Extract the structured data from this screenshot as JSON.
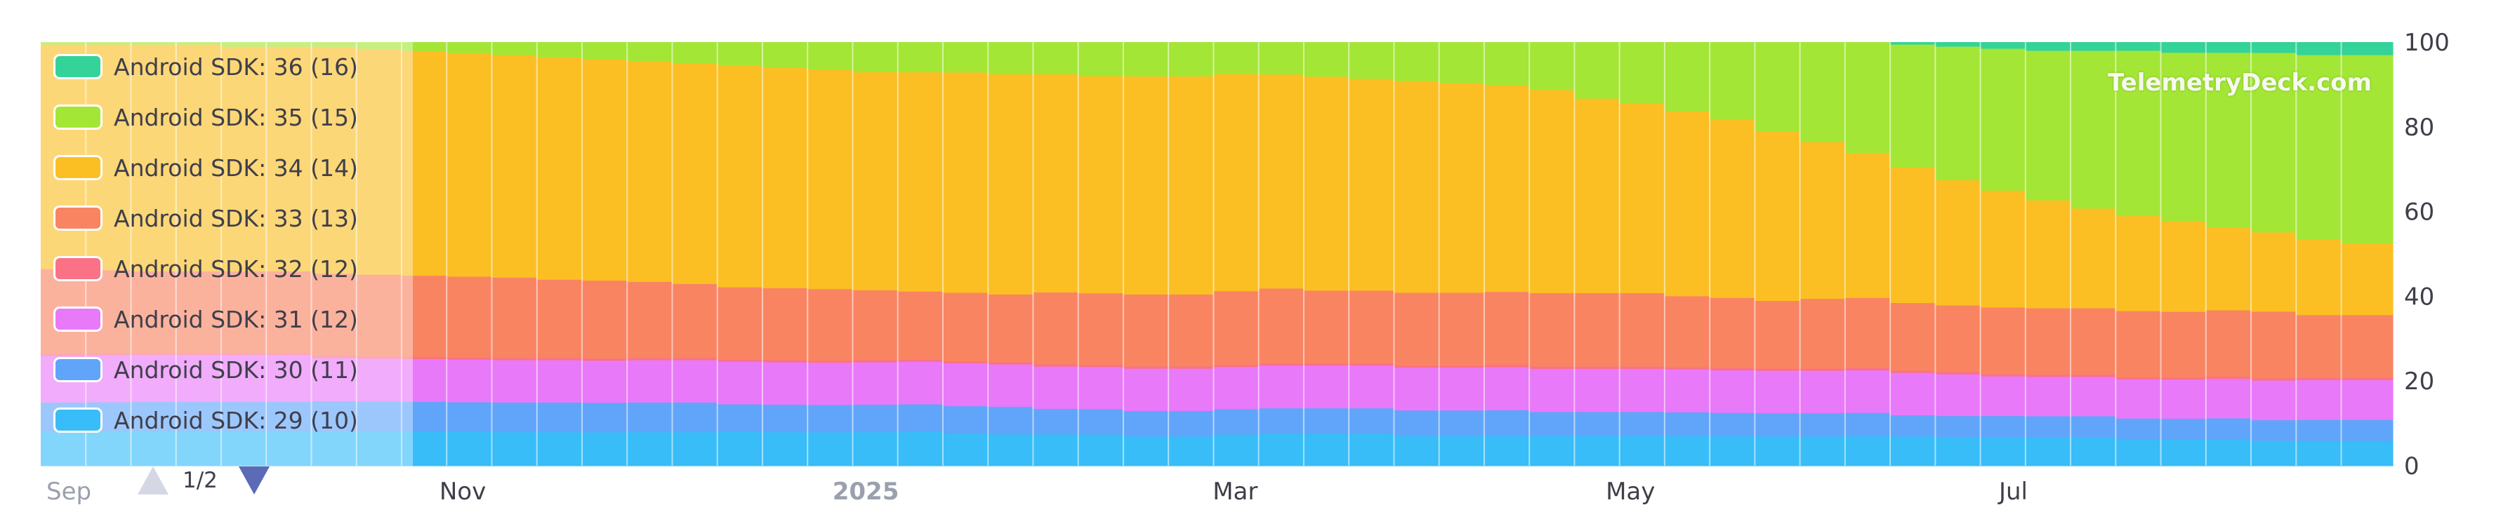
{
  "chart_data": {
    "type": "area",
    "stacked": true,
    "normalized": true,
    "x_axis": {
      "tick_labels": [
        {
          "label": "Sep",
          "at": "2024-09-01",
          "style": "muted"
        },
        {
          "label": "Nov",
          "at": "2024-11-01",
          "style": "normal"
        },
        {
          "label": "2025",
          "at": "2025-01-01",
          "style": "bold"
        },
        {
          "label": "Mar",
          "at": "2025-03-01",
          "style": "normal"
        },
        {
          "label": "May",
          "at": "2025-05-01",
          "style": "normal"
        },
        {
          "label": "Jul",
          "at": "2025-07-01",
          "style": "normal"
        }
      ],
      "range": [
        "2024-09-01",
        "2025-09-01"
      ]
    },
    "y_axis": {
      "ticks": [
        0,
        20,
        40,
        60,
        80,
        100
      ],
      "range": [
        0,
        100
      ],
      "side": "right"
    },
    "grid": false,
    "legend_position": "top-left",
    "x": [
      "2024-09-01",
      "2024-09-08",
      "2024-09-15",
      "2024-09-22",
      "2024-09-29",
      "2024-10-06",
      "2024-10-13",
      "2024-10-20",
      "2024-10-27",
      "2024-11-03",
      "2024-11-10",
      "2024-11-17",
      "2024-11-24",
      "2024-12-01",
      "2024-12-08",
      "2024-12-15",
      "2024-12-22",
      "2024-12-29",
      "2025-01-05",
      "2025-01-12",
      "2025-01-19",
      "2025-01-26",
      "2025-02-02",
      "2025-02-09",
      "2025-02-16",
      "2025-02-23",
      "2025-03-02",
      "2025-03-09",
      "2025-03-16",
      "2025-03-23",
      "2025-03-30",
      "2025-04-06",
      "2025-04-13",
      "2025-04-20",
      "2025-04-27",
      "2025-05-04",
      "2025-05-11",
      "2025-05-18",
      "2025-05-25",
      "2025-06-01",
      "2025-06-08",
      "2025-06-15",
      "2025-06-22",
      "2025-06-29",
      "2025-07-06",
      "2025-07-13",
      "2025-07-20",
      "2025-07-27",
      "2025-08-03",
      "2025-08-10",
      "2025-08-17",
      "2025-08-24"
    ],
    "series": [
      {
        "name": "Android SDK: 29 (10)",
        "color": "#38bdf8",
        "values": [
          8,
          8,
          8,
          8,
          8,
          8,
          8,
          8,
          8,
          8,
          8,
          8,
          8,
          8,
          8,
          8,
          8,
          8,
          8,
          8,
          7.5,
          7.5,
          7.5,
          7.5,
          7,
          7,
          7.5,
          7.5,
          7.5,
          7.5,
          7,
          7,
          7,
          7,
          7,
          7,
          7,
          7,
          7,
          7,
          7,
          7,
          7,
          7,
          7,
          7,
          6.5,
          6.5,
          6.5,
          6,
          6,
          6
        ]
      },
      {
        "name": "Android SDK: 30 (11)",
        "color": "#60a5fa",
        "values": [
          7,
          7,
          7,
          7,
          7,
          7,
          7,
          7,
          7,
          7,
          7,
          7,
          7,
          7,
          7,
          6.5,
          6.5,
          6.5,
          6.5,
          6.5,
          6.5,
          6.5,
          6,
          6,
          6,
          6,
          6,
          6,
          6,
          6,
          6,
          6,
          6,
          5.5,
          5.5,
          5.5,
          5.5,
          5.5,
          5.5,
          5.5,
          5.5,
          5,
          5,
          5,
          5,
          5,
          5,
          5,
          5,
          5,
          5,
          5
        ]
      },
      {
        "name": "Android SDK: 31 (12)",
        "color": "#e879f9",
        "values": [
          11,
          11,
          11,
          11,
          11,
          11,
          10,
          10,
          10,
          10,
          10,
          10,
          10,
          10,
          10,
          10,
          10,
          10,
          10,
          10,
          10,
          10,
          10,
          10,
          10,
          10,
          10,
          10,
          10,
          10,
          10,
          10,
          10,
          10,
          10,
          10,
          10,
          10,
          10,
          10,
          10,
          10,
          10,
          9.5,
          9.5,
          9.5,
          9.5,
          9.5,
          9.5,
          9.5,
          9.5,
          9.5
        ]
      },
      {
        "name": "Android SDK: 32 (12)",
        "color": "#fb7185",
        "values": [
          0.5,
          0.5,
          0.5,
          0.5,
          0.5,
          0.5,
          0.5,
          0.5,
          0.5,
          0.5,
          0.5,
          0.5,
          0.5,
          0.5,
          0.5,
          0.5,
          0.5,
          0.5,
          0.5,
          0.5,
          0.5,
          0.5,
          0.5,
          0.5,
          0.5,
          0.5,
          0.5,
          0.5,
          0.5,
          0.5,
          0.5,
          0.5,
          0.5,
          0.5,
          0.5,
          0.5,
          0.5,
          0.5,
          0.5,
          0.5,
          0.5,
          0.5,
          0.5,
          0.5,
          0.5,
          0.5,
          0.5,
          0.5,
          0.5,
          0.5,
          0.5,
          0.5
        ]
      },
      {
        "name": "Android SDK: 33 (13)",
        "color": "#f98462",
        "values": [
          20,
          19.5,
          19,
          19,
          19,
          19,
          19,
          19,
          19,
          19,
          19,
          18.5,
          18.5,
          18,
          17.5,
          17,
          17,
          17,
          16.5,
          16,
          16,
          16,
          17,
          17,
          17,
          17,
          17.5,
          17.5,
          17,
          17,
          17,
          17,
          17,
          17,
          17,
          17,
          16.5,
          16.5,
          16,
          16.5,
          16.5,
          16,
          16,
          16,
          16,
          16,
          16,
          16,
          16,
          16,
          15,
          15
        ]
      },
      {
        "name": "Android SDK: 34 (14)",
        "color": "#fbbf24",
        "values": [
          53,
          53,
          53,
          53,
          52.5,
          52.5,
          52.5,
          52.5,
          52.5,
          52.5,
          52.5,
          52.5,
          52.5,
          52,
          52,
          52,
          52,
          52,
          51.5,
          51.5,
          51.5,
          52,
          51.5,
          51.5,
          51.5,
          51.5,
          51.5,
          50,
          50,
          49.5,
          49.5,
          49,
          48,
          47,
          45,
          44,
          43,
          42,
          40,
          37,
          34,
          32,
          30,
          28,
          26,
          24,
          23,
          22,
          20,
          19,
          18,
          17
        ]
      },
      {
        "name": "Android SDK: 35 (15)",
        "color": "#a3e635",
        "values": [
          0.5,
          0.5,
          0.5,
          0.5,
          1,
          1,
          1,
          1.5,
          2,
          2.5,
          3,
          3.5,
          4,
          4.5,
          5,
          5.5,
          6,
          6.5,
          7,
          7,
          7,
          7.5,
          7.5,
          8,
          8,
          8,
          7.5,
          7.5,
          8,
          8.5,
          9,
          9.5,
          10,
          11,
          13,
          14,
          16,
          18,
          21,
          23.5,
          26,
          29,
          32,
          34,
          36,
          38,
          40,
          41,
          42,
          43,
          44,
          45
        ]
      },
      {
        "name": "Android SDK: 36 (16)",
        "color": "#34d399",
        "values": [
          0,
          0,
          0,
          0,
          0,
          0,
          0,
          0,
          0,
          0,
          0,
          0,
          0,
          0,
          0,
          0,
          0,
          0,
          0,
          0,
          0,
          0,
          0,
          0,
          0,
          0,
          0,
          0,
          0,
          0,
          0,
          0,
          0,
          0,
          0,
          0,
          0,
          0,
          0,
          0,
          0,
          0.5,
          1,
          1.5,
          2,
          2,
          2,
          2.5,
          2.5,
          2.5,
          3,
          3
        ]
      }
    ]
  },
  "legend": {
    "items": [
      {
        "label": "Android SDK: 36 (16)",
        "color": "#34d399"
      },
      {
        "label": "Android SDK: 35 (15)",
        "color": "#a3e635"
      },
      {
        "label": "Android SDK: 34 (14)",
        "color": "#fbbf24"
      },
      {
        "label": "Android SDK: 33 (13)",
        "color": "#f98462"
      },
      {
        "label": "Android SDK: 32 (12)",
        "color": "#fb7185"
      },
      {
        "label": "Android SDK: 31 (12)",
        "color": "#e879f9"
      },
      {
        "label": "Android SDK: 30 (11)",
        "color": "#60a5fa"
      },
      {
        "label": "Android SDK: 29 (10)",
        "color": "#38bdf8"
      }
    ]
  },
  "pager": {
    "text": "1/2",
    "prev_icon": "triangle-up-icon",
    "next_icon": "triangle-down-icon",
    "prev_color": "#d5d8e4",
    "next_color": "#5b6bb5"
  },
  "watermark": "TelemetryDeck.com",
  "colors": {
    "axis_text": "#3f3f4a",
    "axis_muted": "#9aa0ad",
    "bar_separator": "#ffffff"
  }
}
